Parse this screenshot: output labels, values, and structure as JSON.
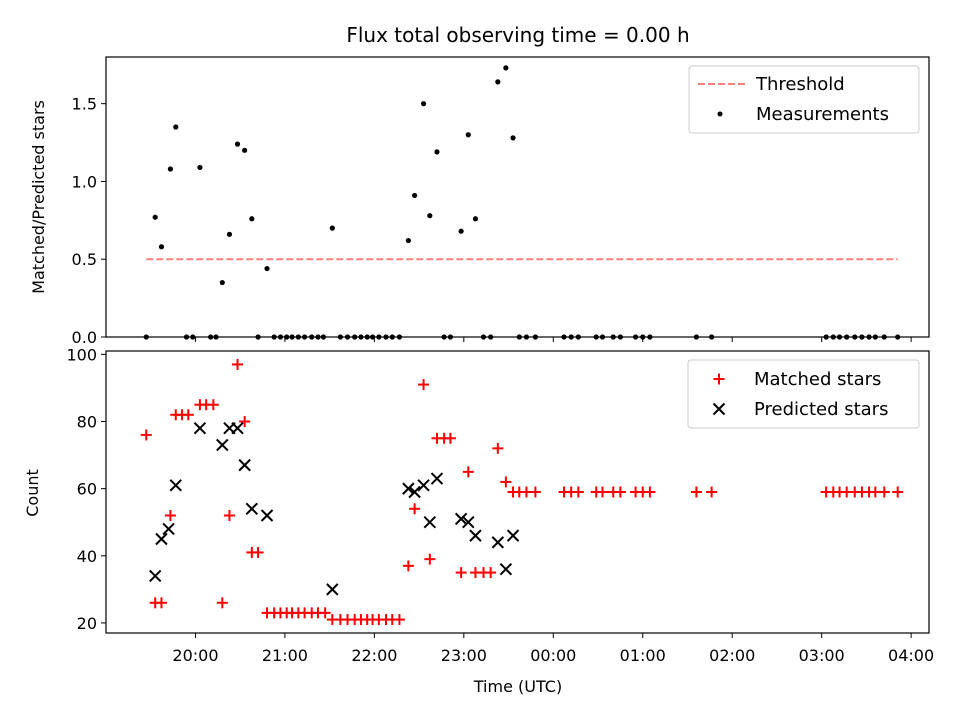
{
  "chart_data": [
    {
      "type": "scatter",
      "title": "Flux total observing time = 0.00 h",
      "xlabel": "",
      "ylabel": "Matched/Predicted stars",
      "ylim": [
        0,
        1.8
      ],
      "yticks": [
        "0.0",
        "0.5",
        "1.0",
        "1.5"
      ],
      "xlim_hours": [
        19.0,
        28.2
      ],
      "legend_position": "top-right",
      "threshold": {
        "name": "Threshold",
        "value": 0.5,
        "x": [
          19.45,
          27.85
        ],
        "color": "#ff7f7f",
        "dash": "dashed"
      },
      "series": [
        {
          "name": "Measurements",
          "color": "#000000",
          "marker": "dot",
          "x": [
            19.45,
            19.55,
            19.62,
            19.72,
            19.78,
            19.9,
            19.97,
            20.05,
            20.17,
            20.23,
            20.3,
            20.38,
            20.47,
            20.55,
            20.63,
            20.7,
            20.8,
            20.88,
            20.95,
            21.02,
            21.08,
            21.15,
            21.22,
            21.3,
            21.37,
            21.43,
            21.53,
            21.62,
            21.7,
            21.78,
            21.85,
            21.92,
            21.98,
            22.05,
            22.13,
            22.2,
            22.28,
            22.38,
            22.45,
            22.55,
            22.62,
            22.7,
            22.78,
            22.85,
            22.97,
            23.05,
            23.13,
            23.22,
            23.3,
            23.38,
            23.47,
            23.55,
            23.62,
            23.7,
            23.8,
            24.12,
            24.2,
            24.28,
            24.48,
            24.55,
            24.67,
            24.75,
            24.92,
            25.0,
            25.08,
            25.6,
            25.77,
            27.05,
            27.13,
            27.2,
            27.28,
            27.37,
            27.45,
            27.53,
            27.6,
            27.7,
            27.85
          ],
          "y": [
            0.0,
            0.77,
            0.58,
            1.08,
            1.35,
            0.0,
            0.0,
            1.09,
            0.0,
            0.0,
            0.35,
            0.66,
            1.24,
            1.2,
            0.76,
            0.0,
            0.44,
            0.0,
            0.0,
            0.0,
            0.0,
            0.0,
            0.0,
            0.0,
            0.0,
            0.0,
            0.7,
            0.0,
            0.0,
            0.0,
            0.0,
            0.0,
            0.0,
            0.0,
            0.0,
            0.0,
            0.0,
            0.62,
            0.91,
            1.5,
            0.78,
            1.19,
            0.0,
            0.0,
            0.68,
            1.3,
            0.76,
            0.0,
            0.0,
            1.64,
            1.73,
            1.28,
            0.0,
            0.0,
            0.0,
            0.0,
            0.0,
            0.0,
            0.0,
            0.0,
            0.0,
            0.0,
            0.0,
            0.0,
            0.0,
            0.0,
            0.0,
            0.0,
            0.0,
            0.0,
            0.0,
            0.0,
            0.0,
            0.0,
            0.0,
            0.0,
            0.0
          ]
        }
      ]
    },
    {
      "type": "scatter",
      "title": "",
      "xlabel": "Time (UTC)",
      "ylabel": "Count",
      "ylim": [
        17,
        101
      ],
      "yticks": [
        "20",
        "40",
        "60",
        "80",
        "100"
      ],
      "xlim_hours": [
        19.0,
        28.2
      ],
      "xticks": [
        "20:00",
        "21:00",
        "22:00",
        "23:00",
        "00:00",
        "01:00",
        "02:00",
        "03:00",
        "04:00"
      ],
      "xtick_hours": [
        20,
        21,
        22,
        23,
        24,
        25,
        26,
        27,
        28
      ],
      "legend_position": "top-right",
      "series": [
        {
          "name": "Matched stars",
          "color": "#ff0000",
          "marker": "plus",
          "x": [
            19.45,
            19.55,
            19.62,
            19.72,
            19.78,
            19.85,
            19.92,
            20.05,
            20.12,
            20.2,
            20.3,
            20.38,
            20.47,
            20.55,
            20.63,
            20.7,
            20.8,
            20.88,
            20.95,
            21.02,
            21.08,
            21.15,
            21.22,
            21.3,
            21.37,
            21.45,
            21.53,
            21.62,
            21.7,
            21.78,
            21.85,
            21.92,
            21.98,
            22.05,
            22.13,
            22.2,
            22.28,
            22.38,
            22.45,
            22.55,
            22.62,
            22.7,
            22.78,
            22.85,
            22.97,
            23.05,
            23.13,
            23.22,
            23.3,
            23.38,
            23.47,
            23.55,
            23.62,
            23.7,
            23.8,
            24.12,
            24.2,
            24.28,
            24.48,
            24.55,
            24.67,
            24.75,
            24.92,
            25.0,
            25.08,
            25.6,
            25.77,
            27.05,
            27.13,
            27.2,
            27.28,
            27.37,
            27.45,
            27.53,
            27.6,
            27.7,
            27.85
          ],
          "y": [
            76,
            26,
            26,
            52,
            82,
            82,
            82,
            85,
            85,
            85,
            26,
            52,
            97,
            80,
            41,
            41,
            23,
            23,
            23,
            23,
            23,
            23,
            23,
            23,
            23,
            23,
            21,
            21,
            21,
            21,
            21,
            21,
            21,
            21,
            21,
            21,
            21,
            37,
            54,
            91,
            39,
            75,
            75,
            75,
            35,
            65,
            35,
            35,
            35,
            72,
            62,
            59,
            59,
            59,
            59,
            59,
            59,
            59,
            59,
            59,
            59,
            59,
            59,
            59,
            59,
            59,
            59,
            59,
            59,
            59,
            59,
            59,
            59,
            59,
            59,
            59,
            59
          ]
        },
        {
          "name": "Predicted stars",
          "color": "#000000",
          "marker": "x",
          "x": [
            19.55,
            19.62,
            19.7,
            19.78,
            20.05,
            20.3,
            20.38,
            20.47,
            20.55,
            20.63,
            20.8,
            21.53,
            22.38,
            22.45,
            22.55,
            22.62,
            22.7,
            22.97,
            23.05,
            23.13,
            23.38,
            23.47,
            23.55
          ],
          "y": [
            34,
            45,
            48,
            61,
            78,
            73,
            78,
            78,
            67,
            54,
            52,
            30,
            60,
            59,
            61,
            50,
            63,
            51,
            50,
            46,
            44,
            36,
            46
          ]
        }
      ]
    }
  ]
}
